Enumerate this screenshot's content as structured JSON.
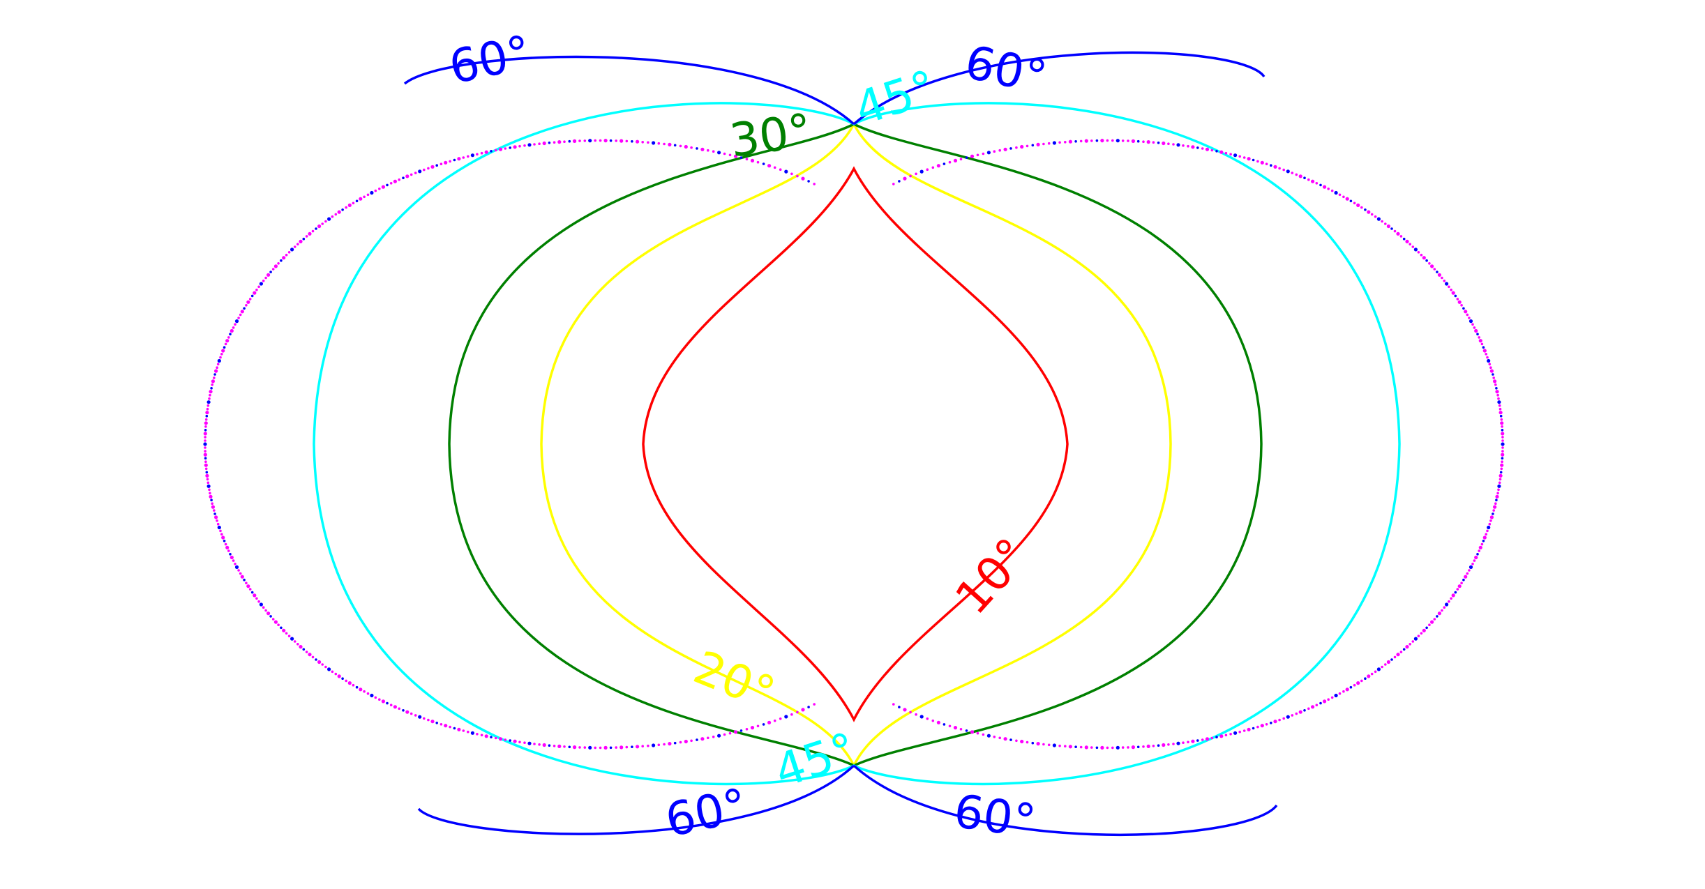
{
  "chart_data": {
    "type": "line",
    "title": "",
    "xlabel": "",
    "ylabel": "",
    "grid": false,
    "axes_visible": false,
    "description_units": "normalized contour family, x in [-1,1], y in [-0.63,0.63]",
    "series": [
      {
        "name": "10°",
        "color": "#ff0000",
        "shape": "lens",
        "half_width": 0.33,
        "half_height": 0.43,
        "style": "solid"
      },
      {
        "name": "20°",
        "color": "#ffff00",
        "shape": "cusped-oval",
        "half_width": 0.49,
        "half_height": 0.5,
        "style": "solid"
      },
      {
        "name": "30°",
        "color": "#008000",
        "shape": "cusped-oval",
        "half_width": 0.63,
        "half_height": 0.5,
        "style": "solid"
      },
      {
        "name": "45°",
        "color": "#00ffff",
        "shape": "double-lobe",
        "half_width": 0.84,
        "half_height": 0.53,
        "style": "solid"
      },
      {
        "name": "60°",
        "color": "#0000ff",
        "shape": "double-lobe",
        "half_width": 0.85,
        "half_height": 0.6,
        "style": "solid"
      },
      {
        "name": "boundary",
        "color": "#ff00ff",
        "shape": "outer-limit",
        "half_width": 1.0,
        "half_height": 0.63,
        "style": "dotted"
      }
    ],
    "annotations": [
      {
        "text": "60°",
        "color": "#0000ff",
        "angle": -12
      },
      {
        "text": "60°",
        "color": "#0000ff",
        "angle": 12
      },
      {
        "text": "45°",
        "color": "#00ffff",
        "angle": -18
      },
      {
        "text": "30°",
        "color": "#008000",
        "angle": -8
      },
      {
        "text": "10°",
        "color": "#ff0000",
        "angle": -48
      },
      {
        "text": "20°",
        "color": "#ffff00",
        "angle": 22
      },
      {
        "text": "45°",
        "color": "#00ffff",
        "angle": -18
      },
      {
        "text": "60°",
        "color": "#0000ff",
        "angle": -12
      },
      {
        "text": "60°",
        "color": "#0000ff",
        "angle": 8
      }
    ]
  }
}
